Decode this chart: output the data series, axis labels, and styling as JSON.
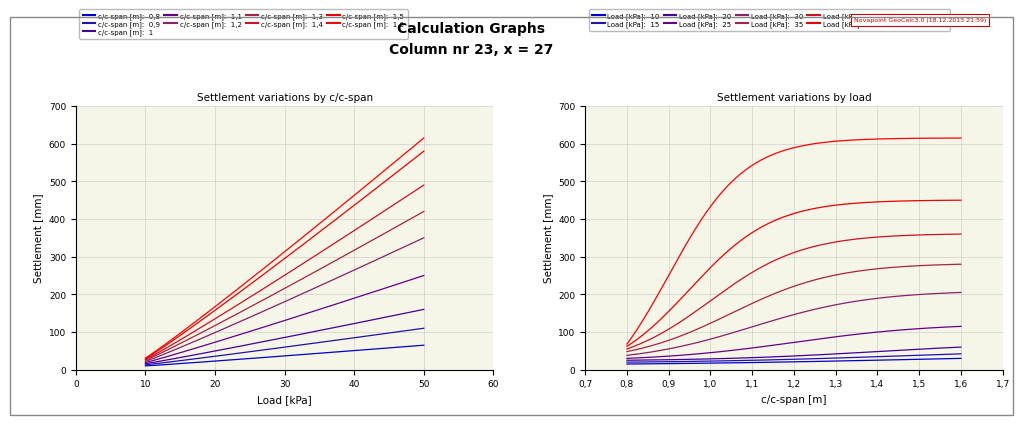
{
  "title_line1": "Calculation Graphs",
  "title_line2": "Column nr 23, x = 27",
  "watermark": "Novapoint GeoCalc3.0 (18.12.2013 21:59)",
  "plot1_title": "Settlement variations by c/c-span",
  "plot1_xlabel": "Load [kPa]",
  "plot1_ylabel": "Settlement [mm]",
  "plot1_xlim": [
    0,
    60
  ],
  "plot1_ylim": [
    0,
    700
  ],
  "plot1_xticks": [
    0,
    10,
    20,
    30,
    40,
    50,
    60
  ],
  "plot1_yticks": [
    0,
    100,
    200,
    300,
    400,
    500,
    600,
    700
  ],
  "plot2_title": "Settlement variations by load",
  "plot2_xlabel": "c/c-span [m]",
  "plot2_ylabel": "Settlement [mm]",
  "plot2_xlim": [
    0.7,
    1.7
  ],
  "plot2_ylim": [
    0,
    700
  ],
  "plot2_xticks": [
    0.7,
    0.8,
    0.9,
    1.0,
    1.1,
    1.2,
    1.3,
    1.4,
    1.5,
    1.6,
    1.7
  ],
  "plot2_yticks": [
    0,
    100,
    200,
    300,
    400,
    500,
    600,
    700
  ],
  "cc_spans": [
    0.8,
    0.9,
    1.0,
    1.1,
    1.2,
    1.3,
    1.4,
    1.5,
    1.6
  ],
  "load_values": [
    10,
    15,
    20,
    25,
    30,
    35,
    40,
    45,
    50
  ],
  "background_color": "#f5f5e8",
  "fig_background": "#ffffff",
  "grid_color": "#c8c8c8",
  "cc_span_colors": [
    "#0000cc",
    "#2211aa",
    "#440099",
    "#660088",
    "#882266",
    "#aa2244",
    "#cc1122",
    "#ee0000",
    "#ff0000"
  ],
  "load_colors": [
    "#0000cc",
    "#2211aa",
    "#440099",
    "#660088",
    "#882266",
    "#aa2244",
    "#cc1122",
    "#ee0000",
    "#ff0000"
  ]
}
